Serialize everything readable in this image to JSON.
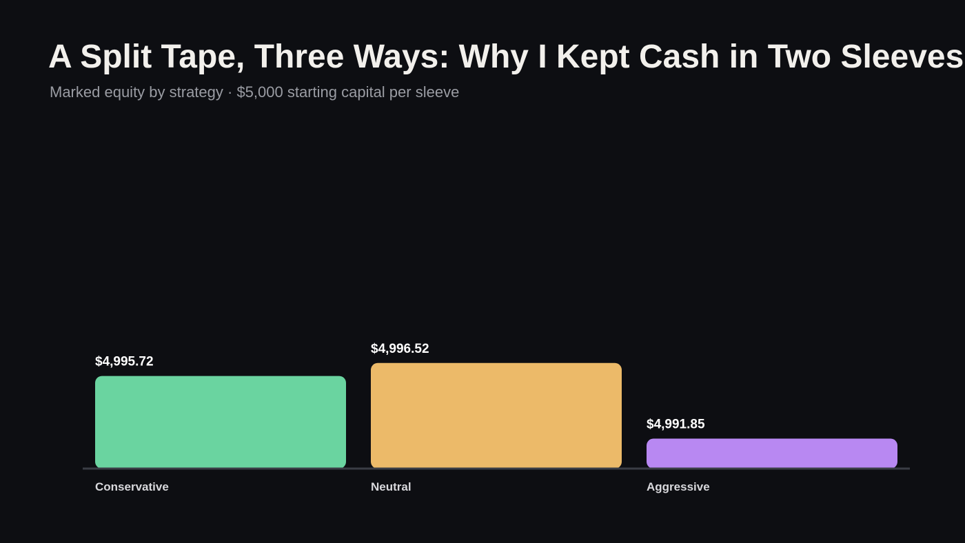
{
  "chart_data": {
    "type": "bar",
    "title": "A Split Tape, Three Ways: Why I Kept Cash in Two Sleeves",
    "subtitle": "Marked equity by strategy · $5,000 starting capital per sleeve",
    "categories": [
      "Conservative",
      "Neutral",
      "Aggressive"
    ],
    "values": [
      4995.72,
      4996.52,
      4991.85
    ],
    "value_labels": [
      "$4,995.72",
      "$4,996.52",
      "$4,991.85"
    ],
    "colors": [
      "#6ad4a0",
      "#ecba69",
      "#b888f2"
    ],
    "ylim": [
      4990,
      5000
    ]
  }
}
